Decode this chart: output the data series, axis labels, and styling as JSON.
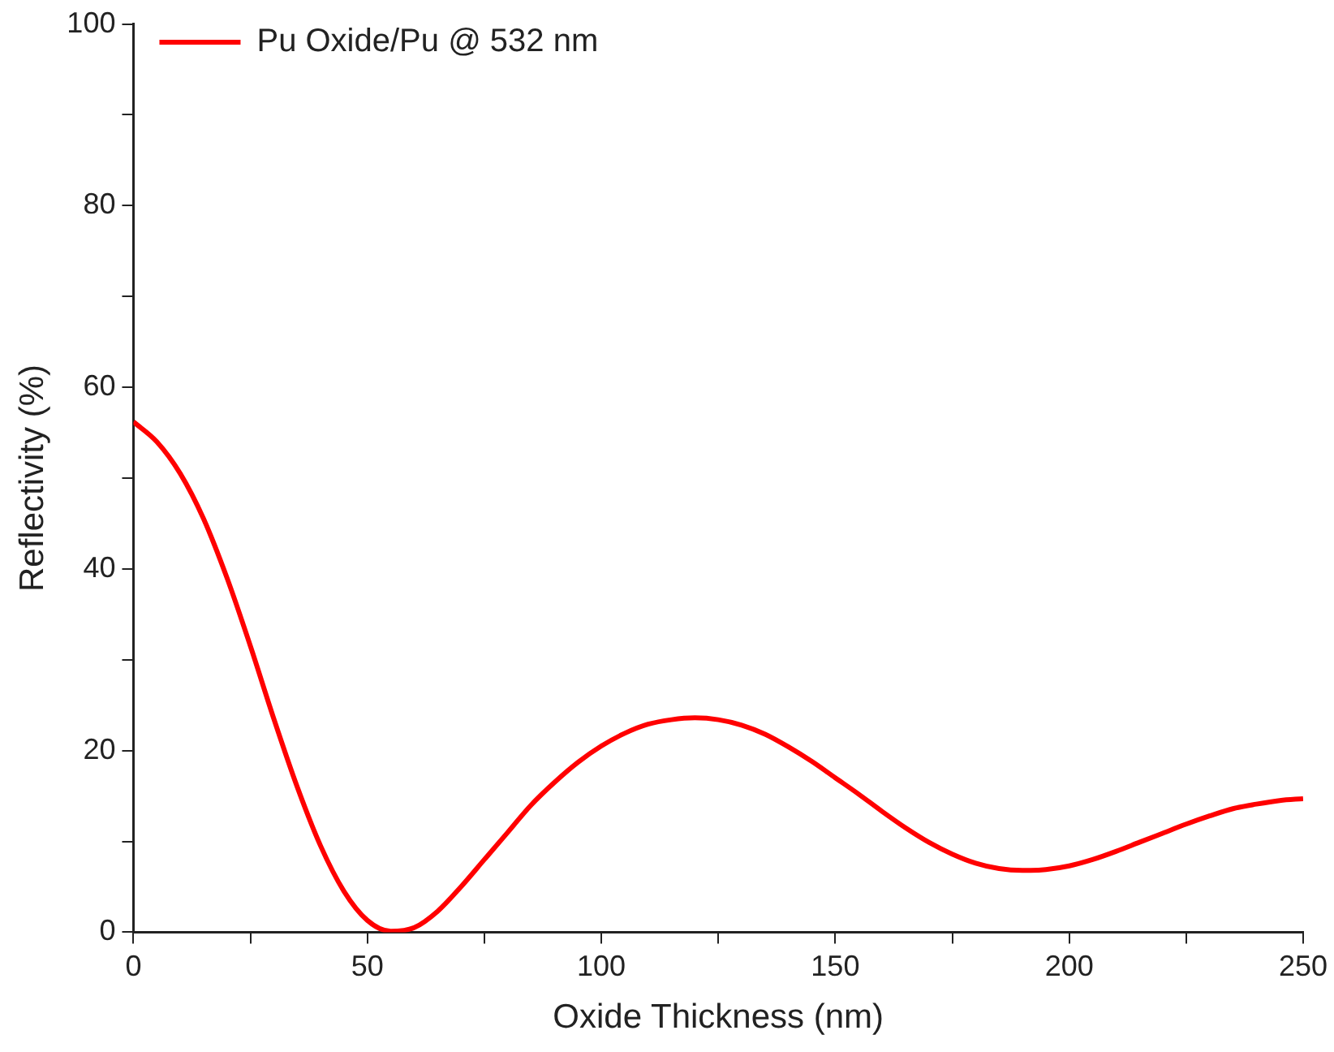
{
  "chart_data": {
    "type": "line",
    "xlabel": "Oxide Thickness (nm)",
    "ylabel": "Reflectivity (%)",
    "x": [
      0,
      5,
      10,
      15,
      20,
      25,
      30,
      35,
      40,
      45,
      50,
      55,
      60,
      65,
      70,
      75,
      80,
      85,
      90,
      95,
      100,
      105,
      110,
      115,
      120,
      125,
      130,
      135,
      140,
      145,
      150,
      155,
      160,
      165,
      170,
      175,
      180,
      185,
      190,
      195,
      200,
      205,
      210,
      215,
      220,
      225,
      230,
      235,
      240,
      245,
      250
    ],
    "series": [
      {
        "name": "Pu Oxide/Pu @ 532 nm",
        "color": "#ff0000",
        "values": [
          56.2,
          54,
          50.5,
          45.5,
          39,
          31.5,
          23.5,
          16,
          9.5,
          4.5,
          1.3,
          0.1,
          0.5,
          2.3,
          5,
          8,
          11,
          14,
          16.5,
          18.7,
          20.5,
          21.9,
          22.9,
          23.4,
          23.6,
          23.4,
          22.8,
          21.8,
          20.4,
          18.8,
          17,
          15.2,
          13.3,
          11.5,
          9.9,
          8.6,
          7.6,
          7,
          6.8,
          6.9,
          7.3,
          8,
          8.9,
          9.9,
          10.9,
          11.9,
          12.8,
          13.6,
          14.1,
          14.5,
          14.7
        ]
      }
    ],
    "xlim": [
      0,
      250
    ],
    "ylim": [
      0,
      100
    ],
    "xticks": [
      0,
      {
        "value": 25,
        "label": null
      },
      50,
      {
        "value": 75,
        "label": null
      },
      100,
      {
        "value": 125,
        "label": null
      },
      150,
      {
        "value": 175,
        "label": null
      },
      200,
      {
        "value": 225,
        "label": null
      },
      250
    ],
    "yticks": [
      0,
      {
        "value": 10,
        "label": null
      },
      20,
      {
        "value": 30,
        "label": null
      },
      40,
      {
        "value": 50,
        "label": null
      },
      60,
      {
        "value": 70,
        "label": null
      },
      80,
      {
        "value": 90,
        "label": null
      },
      100
    ],
    "grid": false,
    "legend": "top left",
    "marker": "none",
    "line_style": "solid"
  }
}
